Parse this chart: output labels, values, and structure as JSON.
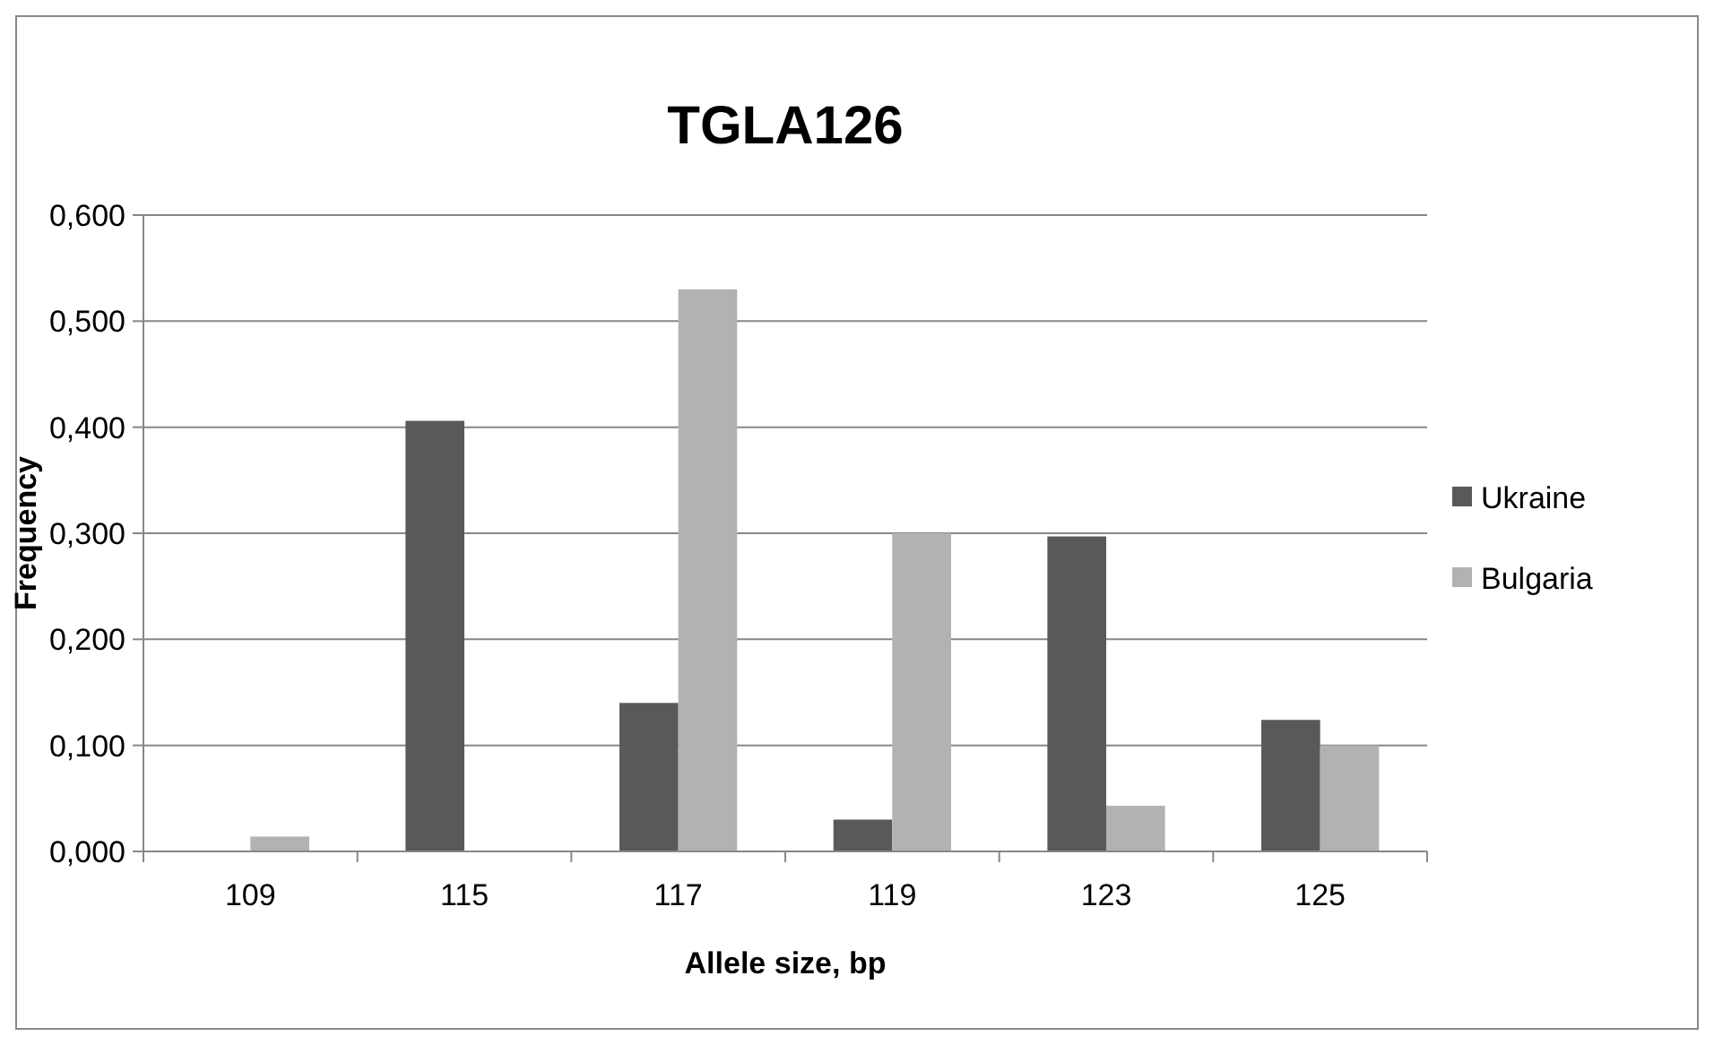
{
  "chart_data": {
    "type": "bar",
    "title": "TGLA126",
    "xlabel": "Allele size, bp",
    "ylabel": "Frequency",
    "categories": [
      "109",
      "115",
      "117",
      "119",
      "123",
      "125"
    ],
    "series": [
      {
        "name": "Ukraine",
        "color": "#595959",
        "values": [
          0,
          0.406,
          0.14,
          0.03,
          0.297,
          0.124
        ]
      },
      {
        "name": "Bulgaria",
        "color": "#b2b2b2",
        "values": [
          0.014,
          0,
          0.53,
          0.3,
          0.043,
          0.1
        ]
      }
    ],
    "ylim": [
      0,
      0.6
    ],
    "yticks": [
      {
        "value": 0,
        "label": "0,000"
      },
      {
        "value": 0.1,
        "label": "0,100"
      },
      {
        "value": 0.2,
        "label": "0,200"
      },
      {
        "value": 0.3,
        "label": "0,300"
      },
      {
        "value": 0.4,
        "label": "0,400"
      },
      {
        "value": 0.5,
        "label": "0,500"
      },
      {
        "value": 0.6,
        "label": "0,600"
      }
    ],
    "grid": "y",
    "legend": "right"
  }
}
